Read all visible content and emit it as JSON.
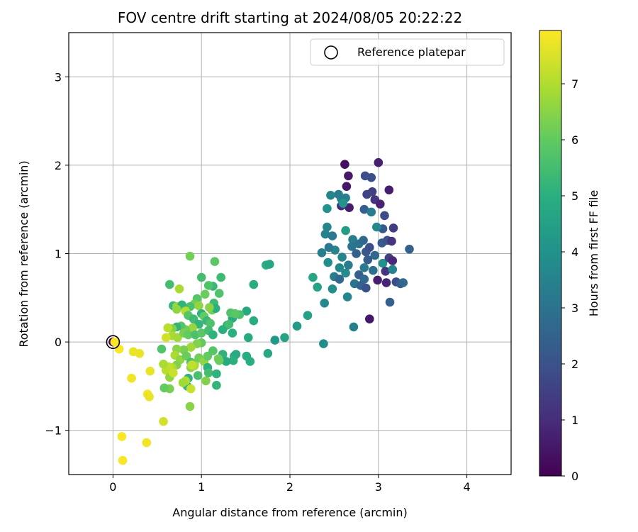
{
  "chart_data": {
    "type": "scatter",
    "title": "FOV centre drift starting at 2024/08/05 20:22:22",
    "xlabel": "Angular distance from reference (arcmin)",
    "ylabel": "Rotation from reference (arcmin)",
    "xlim": [
      -0.5,
      4.5
    ],
    "ylim": [
      -1.5,
      3.5
    ],
    "xticks": [
      "0",
      "1",
      "2",
      "3",
      "4"
    ],
    "yticks": [
      "−1",
      "0",
      "1",
      "2",
      "3"
    ],
    "grid": true,
    "legend": {
      "placement": "top-right",
      "entries": [
        "Reference platepar"
      ]
    },
    "reference_point": {
      "x": 0,
      "y": 0
    },
    "colorbar": {
      "label": "Hours from first FF file",
      "colormap": "viridis",
      "range": [
        0,
        7.95
      ],
      "ticks": [
        "0",
        "1",
        "2",
        "3",
        "4",
        "5",
        "6",
        "7"
      ]
    },
    "points": [
      [
        0.0,
        0.0,
        0.0
      ],
      [
        2.62,
        2.01,
        0.3
      ],
      [
        2.66,
        1.88,
        0.5
      ],
      [
        2.64,
        1.76,
        0.5
      ],
      [
        3.0,
        2.03,
        0.7
      ],
      [
        2.92,
        1.86,
        1.9
      ],
      [
        2.85,
        1.88,
        1.9
      ],
      [
        2.93,
        1.7,
        1.5
      ],
      [
        2.87,
        1.67,
        1.6
      ],
      [
        3.12,
        1.72,
        0.6
      ],
      [
        2.96,
        1.61,
        1.2
      ],
      [
        3.02,
        1.56,
        0.8
      ],
      [
        2.67,
        1.52,
        0.6
      ],
      [
        2.58,
        1.54,
        1.0
      ],
      [
        2.84,
        1.5,
        2.4
      ],
      [
        2.92,
        1.47,
        3.3
      ],
      [
        3.07,
        1.43,
        1.8
      ],
      [
        2.58,
        1.62,
        3.4
      ],
      [
        2.63,
        1.63,
        3.4
      ],
      [
        2.55,
        1.67,
        3.3
      ],
      [
        2.46,
        1.66,
        3.6
      ],
      [
        2.42,
        1.51,
        4.0
      ],
      [
        2.6,
        1.57,
        4.1
      ],
      [
        3.17,
        1.29,
        1.4
      ],
      [
        3.05,
        1.28,
        2.2
      ],
      [
        2.98,
        1.3,
        3.7
      ],
      [
        2.42,
        1.3,
        3.6
      ],
      [
        2.4,
        1.22,
        3.5
      ],
      [
        2.48,
        1.2,
        3.2
      ],
      [
        2.63,
        1.26,
        4.4
      ],
      [
        2.71,
        1.16,
        3.4
      ],
      [
        2.78,
        1.11,
        3.0
      ],
      [
        2.83,
        1.15,
        2.7
      ],
      [
        3.04,
        1.12,
        2.3
      ],
      [
        3.1,
        1.15,
        2.0
      ],
      [
        3.15,
        1.14,
        1.2
      ],
      [
        2.7,
        1.08,
        3.0
      ],
      [
        2.75,
        1.0,
        2.5
      ],
      [
        2.86,
        1.02,
        2.2
      ],
      [
        2.9,
        1.07,
        1.9
      ],
      [
        2.96,
        0.98,
        2.7
      ],
      [
        2.51,
        1.04,
        3.6
      ],
      [
        2.44,
        1.07,
        3.2
      ],
      [
        2.36,
        1.01,
        3.4
      ],
      [
        2.88,
        0.93,
        2.3
      ],
      [
        3.05,
        0.89,
        4.0
      ],
      [
        3.12,
        0.95,
        1.5
      ],
      [
        3.16,
        0.92,
        0.9
      ],
      [
        3.35,
        1.05,
        2.4
      ],
      [
        2.59,
        0.96,
        3.6
      ],
      [
        2.43,
        0.9,
        3.9
      ],
      [
        2.66,
        0.87,
        3.3
      ],
      [
        2.84,
        0.84,
        3.2
      ],
      [
        2.94,
        0.81,
        2.9
      ],
      [
        3.08,
        0.8,
        1.2
      ],
      [
        3.16,
        0.82,
        3.6
      ],
      [
        2.56,
        0.84,
        3.7
      ],
      [
        2.63,
        0.78,
        3.8
      ],
      [
        2.5,
        0.74,
        3.3
      ],
      [
        2.56,
        0.71,
        2.7
      ],
      [
        2.78,
        0.76,
        2.4
      ],
      [
        2.84,
        0.71,
        2.7
      ],
      [
        2.73,
        0.66,
        3.0
      ],
      [
        2.8,
        0.64,
        2.5
      ],
      [
        2.86,
        0.61,
        2.0
      ],
      [
        2.99,
        0.7,
        0.6
      ],
      [
        3.09,
        0.67,
        0.8
      ],
      [
        3.2,
        0.68,
        1.8
      ],
      [
        3.25,
        0.66,
        2.3
      ],
      [
        3.28,
        0.67,
        2.7
      ],
      [
        2.26,
        0.73,
        4.7
      ],
      [
        2.31,
        0.62,
        4.6
      ],
      [
        2.48,
        0.6,
        3.9
      ],
      [
        2.65,
        0.51,
        3.6
      ],
      [
        2.39,
        0.44,
        3.7
      ],
      [
        3.13,
        0.45,
        2.4
      ],
      [
        2.9,
        0.26,
        0.5
      ],
      [
        2.72,
        0.17,
        3.4
      ],
      [
        2.2,
        0.3,
        4.5
      ],
      [
        2.08,
        0.18,
        4.3
      ],
      [
        1.94,
        0.05,
        4.6
      ],
      [
        1.83,
        0.02,
        4.3
      ],
      [
        1.75,
        -0.13,
        4.7
      ],
      [
        2.38,
        -0.02,
        3.8
      ],
      [
        1.73,
        0.87,
        4.9
      ],
      [
        1.77,
        0.88,
        4.7
      ],
      [
        1.59,
        0.65,
        4.9
      ],
      [
        1.59,
        0.24,
        4.9
      ],
      [
        1.51,
        0.35,
        4.8
      ],
      [
        1.53,
        0.05,
        4.8
      ],
      [
        1.43,
        0.31,
        5.6
      ],
      [
        1.35,
        0.27,
        4.8
      ],
      [
        1.33,
        0.33,
        5.7
      ],
      [
        1.38,
        0.32,
        5.9
      ],
      [
        1.29,
        0.19,
        5.1
      ],
      [
        1.35,
        0.1,
        5.0
      ],
      [
        1.24,
        0.14,
        5.0
      ],
      [
        1.31,
        0.2,
        5.5
      ],
      [
        1.51,
        -0.16,
        4.9
      ],
      [
        1.55,
        -0.22,
        4.9
      ],
      [
        1.39,
        -0.14,
        4.8
      ],
      [
        1.37,
        -0.16,
        4.8
      ],
      [
        1.36,
        -0.21,
        5.0
      ],
      [
        1.24,
        -0.14,
        5.1
      ],
      [
        1.28,
        -0.22,
        4.8
      ],
      [
        1.19,
        -0.19,
        6.3
      ],
      [
        1.2,
        -0.21,
        6.1
      ],
      [
        1.22,
        0.73,
        5.4
      ],
      [
        1.15,
        0.91,
        5.9
      ],
      [
        1.2,
        0.55,
        5.7
      ],
      [
        1.13,
        0.63,
        5.3
      ],
      [
        1.14,
        0.44,
        5.4
      ],
      [
        1.08,
        0.64,
        5.7
      ],
      [
        1.04,
        0.54,
        6.1
      ],
      [
        1.12,
        0.36,
        6.2
      ],
      [
        1.16,
        0.38,
        5.0
      ],
      [
        1.09,
        0.39,
        6.5
      ],
      [
        1.0,
        0.73,
        5.5
      ],
      [
        0.87,
        0.97,
        6.2
      ],
      [
        0.95,
        0.49,
        5.8
      ],
      [
        0.92,
        0.43,
        6.2
      ],
      [
        0.97,
        0.41,
        6.6
      ],
      [
        0.87,
        0.4,
        5.6
      ],
      [
        0.75,
        0.6,
        6.9
      ],
      [
        0.64,
        0.65,
        5.5
      ],
      [
        0.68,
        0.41,
        5.3
      ],
      [
        0.72,
        0.4,
        6.7
      ],
      [
        0.78,
        0.42,
        5.2
      ],
      [
        0.82,
        0.35,
        7.0
      ],
      [
        0.72,
        0.37,
        6.6
      ],
      [
        0.85,
        0.3,
        5.8
      ],
      [
        0.91,
        0.26,
        5.4
      ],
      [
        1.0,
        0.32,
        5.1
      ],
      [
        1.03,
        0.29,
        6.0
      ],
      [
        1.06,
        0.24,
        5.3
      ],
      [
        1.1,
        0.21,
        5.7
      ],
      [
        0.97,
        0.2,
        5.2
      ],
      [
        0.9,
        0.16,
        6.7
      ],
      [
        0.82,
        0.14,
        6.2
      ],
      [
        0.77,
        0.18,
        5.8
      ],
      [
        0.72,
        0.17,
        5.2
      ],
      [
        0.67,
        0.15,
        6.4
      ],
      [
        0.62,
        0.16,
        7.1
      ],
      [
        0.67,
        0.07,
        6.9
      ],
      [
        0.6,
        0.05,
        7.4
      ],
      [
        0.73,
        0.05,
        6.8
      ],
      [
        0.8,
        0.1,
        6.3
      ],
      [
        0.85,
        0.08,
        6.0
      ],
      [
        0.93,
        0.08,
        5.6
      ],
      [
        1.0,
        0.1,
        5.9
      ],
      [
        1.08,
        0.13,
        5.5
      ],
      [
        1.13,
        0.08,
        5.1
      ],
      [
        1.0,
        -0.01,
        6.0
      ],
      [
        0.95,
        -0.02,
        6.4
      ],
      [
        0.88,
        -0.06,
        6.8
      ],
      [
        0.8,
        -0.09,
        6.3
      ],
      [
        0.72,
        -0.08,
        6.5
      ],
      [
        0.7,
        -0.15,
        6.9
      ],
      [
        0.76,
        -0.2,
        6.6
      ],
      [
        0.83,
        -0.16,
        6.1
      ],
      [
        0.88,
        -0.23,
        5.6
      ],
      [
        0.92,
        -0.24,
        6.0
      ],
      [
        0.97,
        -0.18,
        6.2
      ],
      [
        1.03,
        -0.22,
        6.6
      ],
      [
        1.07,
        -0.16,
        6.0
      ],
      [
        1.13,
        -0.1,
        5.8
      ],
      [
        1.07,
        -0.29,
        5.0
      ],
      [
        1.08,
        -0.35,
        5.5
      ],
      [
        1.17,
        -0.36,
        5.1
      ],
      [
        1.05,
        -0.44,
        6.4
      ],
      [
        1.17,
        -0.49,
        5.2
      ],
      [
        0.96,
        -0.38,
        5.6
      ],
      [
        0.88,
        -0.29,
        6.5
      ],
      [
        0.85,
        -0.41,
        5.1
      ],
      [
        0.84,
        -0.5,
        5.1
      ],
      [
        0.88,
        -0.53,
        7.3
      ],
      [
        0.82,
        -0.44,
        7.0
      ],
      [
        0.79,
        -0.46,
        6.8
      ],
      [
        0.92,
        -0.27,
        6.9
      ],
      [
        0.89,
        -0.26,
        7.2
      ],
      [
        0.72,
        -0.26,
        6.4
      ],
      [
        0.67,
        -0.29,
        6.9
      ],
      [
        0.63,
        -0.28,
        7.2
      ],
      [
        0.6,
        -0.32,
        7.1
      ],
      [
        0.57,
        -0.25,
        6.9
      ],
      [
        0.64,
        -0.4,
        6.6
      ],
      [
        0.68,
        -0.35,
        7.3
      ],
      [
        0.64,
        -0.53,
        6.3
      ],
      [
        0.58,
        -0.52,
        6.0
      ],
      [
        0.55,
        -0.08,
        5.7
      ],
      [
        0.87,
        -0.73,
        6.5
      ],
      [
        0.57,
        -0.9,
        7.4
      ],
      [
        0.42,
        -0.33,
        7.7
      ],
      [
        0.39,
        -0.59,
        7.8
      ],
      [
        0.41,
        -0.62,
        7.7
      ],
      [
        0.38,
        -1.14,
        7.8
      ],
      [
        0.21,
        -0.41,
        7.8
      ],
      [
        0.23,
        -0.11,
        7.7
      ],
      [
        0.3,
        -0.13,
        7.7
      ],
      [
        0.07,
        -0.08,
        7.9
      ],
      [
        0.1,
        -1.07,
        7.9
      ],
      [
        0.11,
        -1.34,
        7.9
      ],
      [
        0.02,
        0.0,
        7.9
      ]
    ]
  }
}
